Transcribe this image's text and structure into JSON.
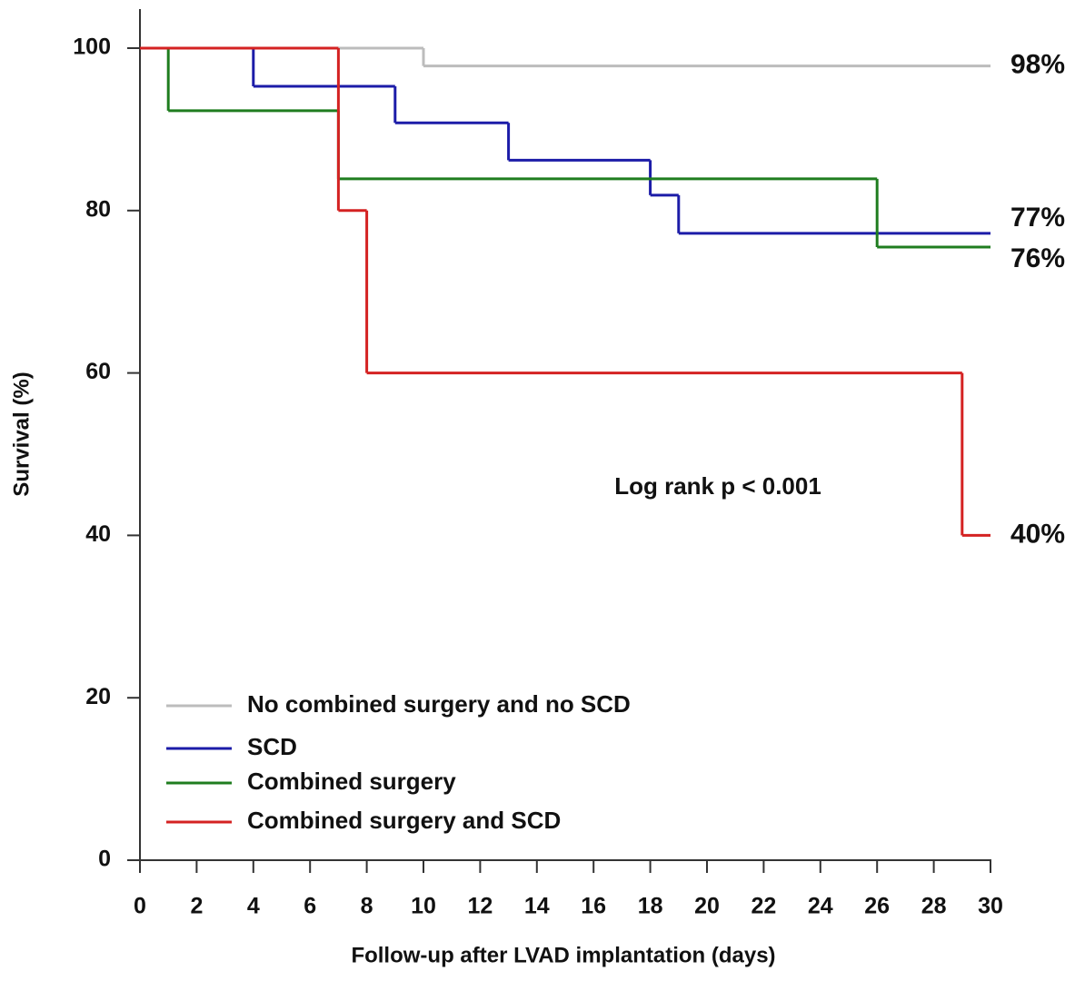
{
  "chart_data": {
    "type": "step",
    "x_label": "Follow-up after LVAD implantation (days)",
    "y_label": "Survival (%)",
    "annotation": "Log rank p < 0.001",
    "xlim": [
      0,
      30
    ],
    "xticks": [
      0,
      2,
      4,
      6,
      8,
      10,
      12,
      14,
      16,
      18,
      20,
      22,
      24,
      26,
      28,
      30
    ],
    "ylim": [
      0,
      100
    ],
    "yticks": [
      0,
      20,
      40,
      60,
      80,
      100
    ],
    "legend": "lower left",
    "series": [
      {
        "name": "No combined surgery and no SCD",
        "color": "#bcbcbc",
        "x": [
          0,
          10
        ],
        "values": [
          100,
          97.8
        ],
        "end_label": "98%"
      },
      {
        "name": "SCD",
        "color": "#1c1ca8",
        "x": [
          0,
          4,
          9,
          13,
          18,
          19
        ],
        "values": [
          100,
          95.3,
          90.8,
          86.2,
          81.9,
          77.2
        ],
        "end_label": "77%"
      },
      {
        "name": "Combined surgery",
        "color": "#1f7d1f",
        "x": [
          0,
          1,
          7,
          26
        ],
        "values": [
          100,
          92.3,
          83.9,
          75.5
        ],
        "end_label": "76%"
      },
      {
        "name": "Combined surgery and SCD",
        "color": "#d42222",
        "x": [
          0,
          7,
          8,
          29
        ],
        "values": [
          100,
          80,
          60,
          40
        ],
        "end_label": "40%"
      }
    ]
  }
}
